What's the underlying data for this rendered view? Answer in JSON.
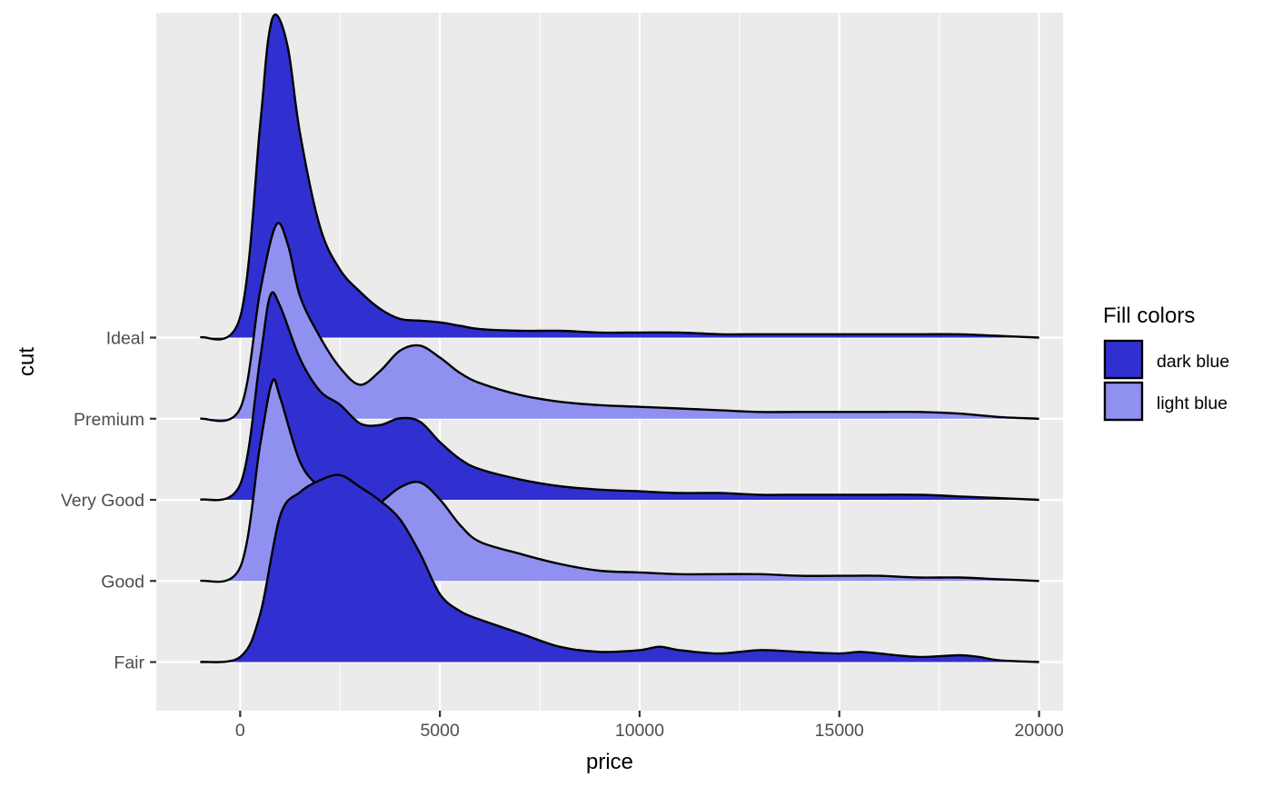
{
  "chart_data": {
    "type": "ridgeline",
    "xlabel": "price",
    "ylabel": "cut",
    "xlim": [
      -2100,
      20600
    ],
    "x_ticks": [
      0,
      5000,
      10000,
      15000,
      20000
    ],
    "x_tick_labels": [
      "0",
      "5000",
      "10000",
      "15000",
      "20000"
    ],
    "categories": [
      "Fair",
      "Good",
      "Very Good",
      "Premium",
      "Ideal"
    ],
    "grid": true,
    "legend": {
      "title": "Fill colors",
      "position": "right",
      "entries": [
        {
          "label": "dark blue",
          "color": "#3030d0"
        },
        {
          "label": "light blue",
          "color": "#9090f0"
        }
      ]
    },
    "series": [
      {
        "category": "Fair",
        "fill": "dark blue",
        "x": [
          -1000,
          0,
          500,
          1000,
          1500,
          2000,
          2500,
          3000,
          3500,
          4000,
          4500,
          5000,
          5500,
          6000,
          7000,
          8000,
          9000,
          10000,
          10500,
          11000,
          12000,
          13000,
          14000,
          15000,
          15500,
          16000,
          17000,
          18000,
          18500,
          19000,
          20000
        ],
        "density": [
          0,
          0.03,
          0.28,
          0.86,
          1.0,
          1.07,
          1.1,
          1.03,
          0.95,
          0.84,
          0.64,
          0.4,
          0.3,
          0.25,
          0.17,
          0.09,
          0.06,
          0.07,
          0.09,
          0.07,
          0.05,
          0.07,
          0.06,
          0.05,
          0.06,
          0.05,
          0.03,
          0.04,
          0.03,
          0.01,
          0
        ]
      },
      {
        "category": "Good",
        "fill": "light blue",
        "x": [
          -1000,
          0,
          500,
          800,
          1000,
          1500,
          2000,
          2500,
          3000,
          3500,
          4000,
          4500,
          5000,
          5500,
          6000,
          7000,
          8000,
          9000,
          10000,
          11000,
          12000,
          13000,
          14000,
          15000,
          16000,
          17000,
          18000,
          19000,
          20000
        ],
        "density": [
          0,
          0.08,
          0.8,
          1.17,
          1.08,
          0.7,
          0.55,
          0.47,
          0.4,
          0.46,
          0.55,
          0.58,
          0.48,
          0.33,
          0.23,
          0.16,
          0.1,
          0.06,
          0.05,
          0.04,
          0.04,
          0.04,
          0.03,
          0.03,
          0.03,
          0.02,
          0.02,
          0.01,
          0
        ]
      },
      {
        "category": "Very Good",
        "fill": "dark blue",
        "x": [
          -1000,
          0,
          500,
          750,
          1000,
          1500,
          2000,
          2500,
          3000,
          3500,
          4000,
          4500,
          5000,
          5500,
          6000,
          7000,
          8000,
          9000,
          10000,
          11000,
          12000,
          13000,
          14000,
          15000,
          16000,
          17000,
          18000,
          19000,
          20000
        ],
        "density": [
          0,
          0.09,
          0.83,
          1.2,
          1.14,
          0.83,
          0.64,
          0.56,
          0.45,
          0.44,
          0.48,
          0.46,
          0.34,
          0.24,
          0.18,
          0.12,
          0.08,
          0.06,
          0.05,
          0.04,
          0.04,
          0.03,
          0.03,
          0.03,
          0.03,
          0.03,
          0.02,
          0.01,
          0
        ]
      },
      {
        "category": "Premium",
        "fill": "light blue",
        "x": [
          -1000,
          0,
          500,
          900,
          1200,
          1500,
          2000,
          2500,
          3000,
          3500,
          4000,
          4500,
          5000,
          5500,
          6000,
          7000,
          8000,
          9000,
          10000,
          11000,
          12000,
          13000,
          14000,
          15000,
          16000,
          17000,
          18000,
          19000,
          20000
        ],
        "density": [
          0,
          0.06,
          0.75,
          1.14,
          1.02,
          0.72,
          0.48,
          0.3,
          0.2,
          0.28,
          0.4,
          0.43,
          0.36,
          0.27,
          0.21,
          0.14,
          0.1,
          0.08,
          0.07,
          0.06,
          0.05,
          0.04,
          0.04,
          0.04,
          0.04,
          0.04,
          0.03,
          0.01,
          0
        ]
      },
      {
        "category": "Ideal",
        "fill": "dark blue",
        "x": [
          -1000,
          0,
          500,
          700,
          900,
          1200,
          1500,
          2000,
          2500,
          3000,
          3500,
          4000,
          4500,
          5000,
          5500,
          6000,
          7000,
          8000,
          9000,
          10000,
          11000,
          12000,
          13000,
          14000,
          15000,
          16000,
          17000,
          18000,
          19000,
          20000
        ],
        "density": [
          0,
          0.12,
          1.25,
          1.75,
          1.9,
          1.7,
          1.2,
          0.65,
          0.4,
          0.27,
          0.17,
          0.11,
          0.1,
          0.09,
          0.07,
          0.05,
          0.04,
          0.04,
          0.03,
          0.03,
          0.03,
          0.02,
          0.02,
          0.02,
          0.02,
          0.02,
          0.02,
          0.02,
          0.01,
          0
        ]
      }
    ]
  }
}
